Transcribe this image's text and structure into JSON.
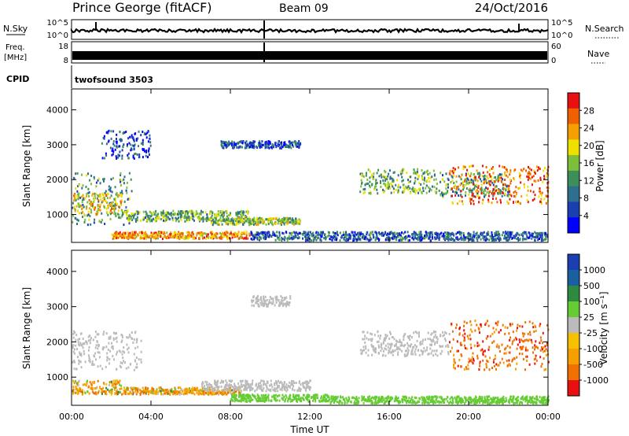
{
  "header": {
    "station": "Prince George (fitACF)",
    "beam": "Beam 09",
    "date": "24/Oct/2016"
  },
  "strips": {
    "nsky_label": "N.Sky",
    "nsky_ticks": [
      "10^5",
      "10^0"
    ],
    "nsearch_label": "N.Search",
    "nsearch_ticks": [
      "10^5",
      "10^0"
    ],
    "freq_label": "Freq.",
    "freq_unit": "[MHz]",
    "freq_ticks": [
      "18",
      "8"
    ],
    "nave_label": "Nave",
    "nave_ticks": [
      "60",
      "0"
    ],
    "cpid_label": "CPID",
    "cpid_value": "twofsound 3503"
  },
  "colors": {
    "power_scale": [
      "#0000ff",
      "#1a3fb0",
      "#2e6e8e",
      "#3d8f5a",
      "#7bbf3a",
      "#f0e000",
      "#f5a000",
      "#f06000",
      "#e81010"
    ],
    "velocity_scale": [
      "#1a3fb0",
      "#1a5fa0",
      "#2e8a40",
      "#66cc33",
      "#bbbbbb",
      "#f5c000",
      "#f5a000",
      "#f07000",
      "#e81010"
    ]
  },
  "chart_data": [
    {
      "type": "heatmap",
      "panel": "power",
      "xlabel": "",
      "ylabel": "Slant Range [km]",
      "xlim": [
        0,
        24
      ],
      "ylim": [
        200,
        4600
      ],
      "yticks": [
        "1000",
        "2000",
        "3000",
        "4000"
      ],
      "xticks": [
        "00:00",
        "04:00",
        "08:00",
        "12:00",
        "16:00",
        "20:00",
        "00:00"
      ],
      "colorbar": {
        "label": "Power [dB]",
        "ticks": [
          "4",
          "8",
          "12",
          "16",
          "20",
          "24",
          "28"
        ]
      },
      "regions": [
        {
          "t0": 0.0,
          "t1": 3.0,
          "r0": 700,
          "r1": 2200,
          "value": 12
        },
        {
          "t0": 0.0,
          "t1": 2.5,
          "r0": 1000,
          "r1": 1600,
          "value": 20
        },
        {
          "t0": 1.5,
          "t1": 4.0,
          "r0": 2600,
          "r1": 3400,
          "value": 6
        },
        {
          "t0": 2.5,
          "t1": 9.0,
          "r0": 800,
          "r1": 1100,
          "value": 14
        },
        {
          "t0": 2.0,
          "t1": 9.0,
          "r0": 300,
          "r1": 500,
          "value": 24
        },
        {
          "t0": 7.0,
          "t1": 11.5,
          "r0": 700,
          "r1": 900,
          "value": 16
        },
        {
          "t0": 7.5,
          "t1": 11.5,
          "r0": 2900,
          "r1": 3100,
          "value": 6
        },
        {
          "t0": 9.0,
          "t1": 24.0,
          "r0": 250,
          "r1": 500,
          "value": 8
        },
        {
          "t0": 14.5,
          "t1": 18.5,
          "r0": 1600,
          "r1": 2300,
          "value": 14
        },
        {
          "t0": 18.5,
          "t1": 22.0,
          "r0": 1500,
          "r1": 2200,
          "value": 12
        },
        {
          "t0": 19.0,
          "t1": 24.0,
          "r0": 1300,
          "r1": 2400,
          "value": 26
        }
      ]
    },
    {
      "type": "heatmap",
      "panel": "velocity",
      "xlabel": "Time UT",
      "ylabel": "Slant Range [km]",
      "xlim": [
        0,
        24
      ],
      "ylim": [
        200,
        4600
      ],
      "yticks": [
        "1000",
        "2000",
        "3000",
        "4000"
      ],
      "xticks": [
        "00:00",
        "04:00",
        "08:00",
        "12:00",
        "16:00",
        "20:00",
        "00:00"
      ],
      "colorbar": {
        "label": "Velocity [m s⁻¹]",
        "ticks": [
          "1000",
          "500",
          "100",
          "25",
          "-25",
          "-100",
          "-500",
          "-1000"
        ]
      },
      "regions": [
        {
          "t0": 0.0,
          "t1": 3.5,
          "r0": 1200,
          "r1": 2300,
          "value": 0
        },
        {
          "t0": 0.0,
          "t1": 2.5,
          "r0": 500,
          "r1": 900,
          "value": -300
        },
        {
          "t0": 2.5,
          "t1": 8.5,
          "r0": 500,
          "r1": 700,
          "value": -300
        },
        {
          "t0": 6.5,
          "t1": 12.0,
          "r0": 600,
          "r1": 900,
          "value": 0
        },
        {
          "t0": 8.0,
          "t1": 13.0,
          "r0": 300,
          "r1": 500,
          "value": 60
        },
        {
          "t0": 9.0,
          "t1": 11.0,
          "r0": 3000,
          "r1": 3300,
          "value": 0
        },
        {
          "t0": 14.5,
          "t1": 19.0,
          "r0": 1600,
          "r1": 2300,
          "value": 0
        },
        {
          "t0": 13.0,
          "t1": 24.0,
          "r0": 250,
          "r1": 450,
          "value": 60
        },
        {
          "t0": 19.0,
          "t1": 24.0,
          "r0": 1200,
          "r1": 2600,
          "value": -800
        }
      ]
    }
  ]
}
